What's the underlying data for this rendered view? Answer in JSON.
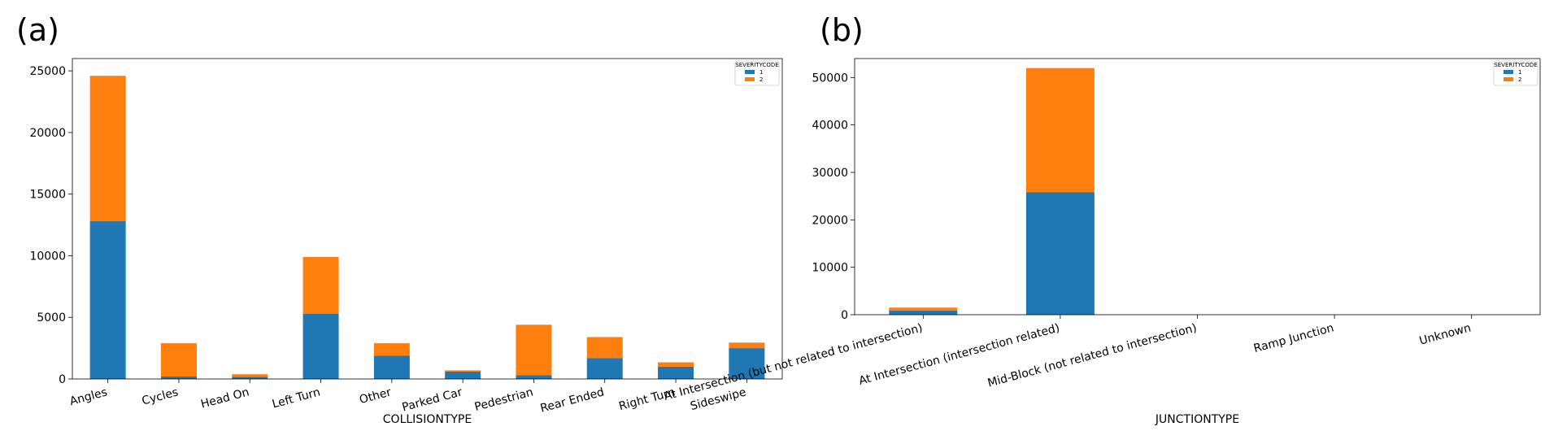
{
  "charts": [
    {
      "panel_label": "(a)",
      "chart_data": {
        "type": "bar",
        "stacked": true,
        "categories": [
          "Angles",
          "Cycles",
          "Head On",
          "Left Turn",
          "Other",
          "Parked Car",
          "Pedestrian",
          "Rear Ended",
          "Right Turn",
          "Sideswipe"
        ],
        "series": [
          {
            "name": "1",
            "color": "#1f77b4",
            "values": [
              12800,
              200,
              180,
              5300,
              1900,
              600,
              300,
              1700,
              1000,
              2500
            ]
          },
          {
            "name": "2",
            "color": "#ff7f0e",
            "values": [
              11800,
              2700,
              200,
              4600,
              1000,
              100,
              4100,
              1700,
              350,
              450
            ]
          }
        ],
        "title": "",
        "xlabel": "COLLISIONTYPE",
        "ylabel": "",
        "ylim": [
          0,
          26000
        ],
        "yticks": [
          0,
          5000,
          10000,
          15000,
          20000,
          25000
        ],
        "ytick_labels": [
          "0",
          "5000",
          "10000",
          "15000",
          "20000",
          "25000"
        ],
        "legend": {
          "title": "SEVERITYCODE",
          "position": "top-right"
        }
      }
    },
    {
      "panel_label": "(b)",
      "chart_data": {
        "type": "bar",
        "stacked": true,
        "categories": [
          "At Intersection (but not related to intersection)",
          "At Intersection (intersection related)",
          "Mid-Block (not related to intersection)",
          "Ramp Junction",
          "Unknown"
        ],
        "series": [
          {
            "name": "1",
            "color": "#1f77b4",
            "values": [
              900,
              25800,
              0,
              0,
              0
            ]
          },
          {
            "name": "2",
            "color": "#ff7f0e",
            "values": [
              600,
              26200,
              0,
              0,
              0
            ]
          }
        ],
        "title": "",
        "xlabel": "JUNCTIONTYPE",
        "ylabel": "",
        "ylim": [
          0,
          54000
        ],
        "yticks": [
          0,
          10000,
          20000,
          30000,
          40000,
          50000
        ],
        "ytick_labels": [
          "0",
          "10000",
          "20000",
          "30000",
          "40000",
          "50000"
        ],
        "legend": {
          "title": "SEVERITYCODE",
          "position": "top-right"
        }
      }
    }
  ]
}
